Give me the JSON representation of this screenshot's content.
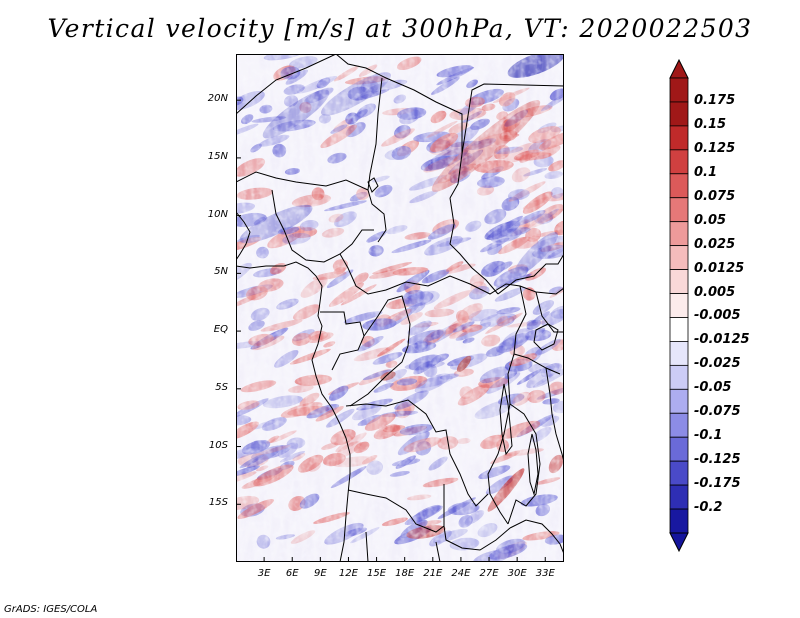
{
  "title": "Vertical velocity [m/s] at 300hPa, VT: 2020022503",
  "footer": "GrADS: IGES/COLA",
  "map": {
    "region": "Central Africa",
    "variable": "Vertical velocity",
    "units": "m/s",
    "level": "300hPa",
    "valid_time": "2020022503",
    "lat_range": [
      -20,
      24
    ],
    "lon_range": [
      0,
      35
    ],
    "lat_ticks": [
      {
        "label": "20N",
        "value": 20
      },
      {
        "label": "15N",
        "value": 15
      },
      {
        "label": "10N",
        "value": 10
      },
      {
        "label": "5N",
        "value": 5
      },
      {
        "label": "EQ",
        "value": 0
      },
      {
        "label": "5S",
        "value": -5
      },
      {
        "label": "10S",
        "value": -10
      },
      {
        "label": "15S",
        "value": -15
      }
    ],
    "lon_ticks": [
      {
        "label": "3E",
        "value": 3
      },
      {
        "label": "6E",
        "value": 6
      },
      {
        "label": "9E",
        "value": 9
      },
      {
        "label": "12E",
        "value": 12
      },
      {
        "label": "15E",
        "value": 15
      },
      {
        "label": "18E",
        "value": 18
      },
      {
        "label": "21E",
        "value": 21
      },
      {
        "label": "24E",
        "value": 24
      },
      {
        "label": "27E",
        "value": 27
      },
      {
        "label": "30E",
        "value": 30
      },
      {
        "label": "33E",
        "value": 33
      }
    ]
  },
  "colorbar": {
    "levels": [
      {
        "label": "0.175",
        "value": 0.175,
        "color": "#a01818"
      },
      {
        "label": "0.15",
        "value": 0.15,
        "color": "#c02a2a"
      },
      {
        "label": "0.125",
        "value": 0.125,
        "color": "#d04040"
      },
      {
        "label": "0.1",
        "value": 0.1,
        "color": "#dc5a5a"
      },
      {
        "label": "0.075",
        "value": 0.075,
        "color": "#e67878"
      },
      {
        "label": "0.05",
        "value": 0.05,
        "color": "#ee9a9a"
      },
      {
        "label": "0.025",
        "value": 0.025,
        "color": "#f5bcbc"
      },
      {
        "label": "0.0125",
        "value": 0.0125,
        "color": "#f9d8d8"
      },
      {
        "label": "0.005",
        "value": 0.005,
        "color": "#fcecec"
      },
      {
        "label": "-0.005",
        "value": -0.005,
        "color": "#ffffff"
      },
      {
        "label": "-0.0125",
        "value": -0.0125,
        "color": "#e6e6fb"
      },
      {
        "label": "-0.025",
        "value": -0.025,
        "color": "#ccccf6"
      },
      {
        "label": "-0.05",
        "value": -0.05,
        "color": "#adadf0"
      },
      {
        "label": "-0.075",
        "value": -0.075,
        "color": "#8c8ce6"
      },
      {
        "label": "-0.1",
        "value": -0.1,
        "color": "#6a6ad8"
      },
      {
        "label": "-0.125",
        "value": -0.125,
        "color": "#4a4ac8"
      },
      {
        "label": "-0.175",
        "value": -0.175,
        "color": "#2e2eb4"
      },
      {
        "label": "-0.2",
        "value": -0.2,
        "color": "#1818a0"
      }
    ],
    "top_color": "#a01818",
    "bottom_color": "#15159c",
    "frame_color": "#000000"
  },
  "style": {
    "positive_color": "#e06060",
    "negative_color": "#5050d0",
    "background_color": "#f2f0fa",
    "border_color": "#000000"
  }
}
